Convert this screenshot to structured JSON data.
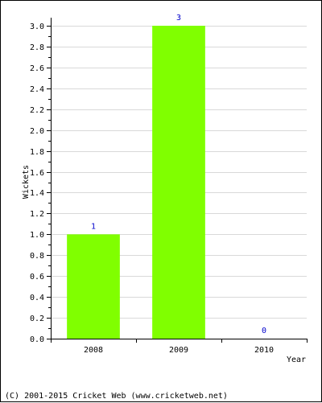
{
  "chart_data": {
    "type": "bar",
    "categories": [
      "2008",
      "2009",
      "2010"
    ],
    "values": [
      1,
      3,
      0
    ],
    "data_labels": [
      "1",
      "3",
      "0"
    ],
    "title": "",
    "xlabel": "Year",
    "ylabel": "Wickets",
    "ylim": [
      0,
      3.0
    ],
    "y_ticks": [
      "0.0",
      "0.2",
      "0.4",
      "0.6",
      "0.8",
      "1.0",
      "1.2",
      "1.4",
      "1.6",
      "1.8",
      "2.0",
      "2.2",
      "2.4",
      "2.6",
      "2.8",
      "3.0"
    ],
    "grid": true,
    "legend": false,
    "colors": {
      "bar": "#80ff00",
      "grid": "#d9d9d9",
      "data_label": "#0000cc"
    }
  },
  "footer": {
    "text": "(C) 2001-2015 Cricket Web (www.cricketweb.net)"
  }
}
